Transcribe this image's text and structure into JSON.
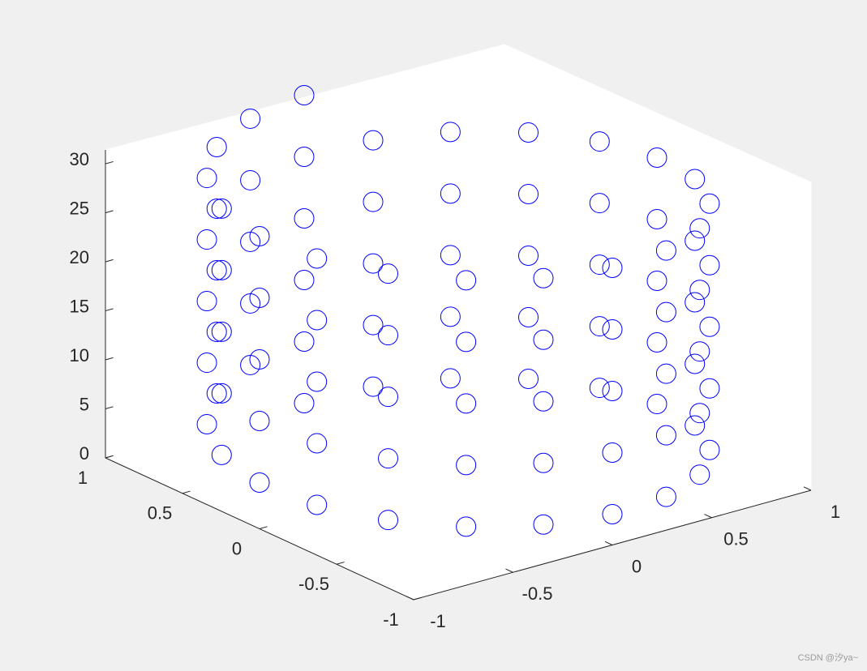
{
  "chart_data": {
    "type": "scatter3d",
    "marker": "circle",
    "color": "#0000ff",
    "x": [
      0,
      0.309,
      0.588,
      0.809,
      0.951,
      1,
      0.951,
      0.809,
      0.588,
      0.309,
      0,
      -0.309,
      -0.588,
      -0.809,
      -0.951,
      -1,
      -0.951,
      -0.809,
      -0.588,
      -0.309,
      0,
      0.309,
      0.588,
      0.809,
      0.951,
      1,
      0.951,
      0.809,
      0.588,
      0.309,
      0,
      -0.309,
      -0.588,
      -0.809,
      -0.951,
      -1,
      -0.951,
      -0.809,
      -0.588,
      -0.309,
      0,
      0.309,
      0.588,
      0.809,
      0.951,
      1,
      0.951,
      0.809,
      0.588,
      0.309,
      0,
      -0.309,
      -0.588,
      -0.809,
      -0.951,
      -1,
      -0.951,
      -0.809,
      -0.588,
      -0.309,
      0,
      0.309,
      0.588,
      0.809,
      0.951,
      1,
      0.951,
      0.809,
      0.588,
      0.309,
      0,
      -0.309,
      -0.588,
      -0.809,
      -0.951,
      -1,
      -0.951,
      -0.809,
      -0.588,
      -0.309,
      0,
      0.309,
      0.588,
      0.809,
      0.951,
      1,
      0.951,
      0.809,
      0.588,
      0.309,
      0,
      -0.309,
      -0.588,
      -0.809,
      -0.951,
      -1,
      -0.951,
      -0.809,
      -0.588,
      -0.309,
      0
    ],
    "y": [
      1,
      0.951,
      0.809,
      0.588,
      0.309,
      0,
      -0.309,
      -0.588,
      -0.809,
      -0.951,
      -1,
      -0.951,
      -0.809,
      -0.588,
      -0.309,
      0,
      0.309,
      0.588,
      0.809,
      0.951,
      1,
      0.951,
      0.809,
      0.588,
      0.309,
      0,
      -0.309,
      -0.588,
      -0.809,
      -0.951,
      -1,
      -0.951,
      -0.809,
      -0.588,
      -0.309,
      0,
      0.309,
      0.588,
      0.809,
      0.951,
      1,
      0.951,
      0.809,
      0.588,
      0.309,
      0,
      -0.309,
      -0.588,
      -0.809,
      -0.951,
      -1,
      -0.951,
      -0.809,
      -0.588,
      -0.309,
      0,
      0.309,
      0.588,
      0.809,
      0.951,
      1,
      0.951,
      0.809,
      0.588,
      0.309,
      0,
      -0.309,
      -0.588,
      -0.809,
      -0.951,
      -1,
      -0.951,
      -0.809,
      -0.588,
      -0.309,
      0,
      0.309,
      0.588,
      0.809,
      0.951,
      1,
      0.951,
      0.809,
      0.588,
      0.309,
      0,
      -0.309,
      -0.588,
      -0.809,
      -0.951,
      -1,
      -0.951,
      -0.809,
      -0.588,
      -0.309,
      0,
      0.309,
      0.588,
      0.809,
      0.951,
      1
    ],
    "z": [
      0,
      0.314,
      0.628,
      0.942,
      1.257,
      1.571,
      1.885,
      2.199,
      2.513,
      2.827,
      3.142,
      3.456,
      3.77,
      4.084,
      4.398,
      4.712,
      5.027,
      5.341,
      5.655,
      5.969,
      6.283,
      6.597,
      6.912,
      7.226,
      7.54,
      7.854,
      8.168,
      8.482,
      8.796,
      9.111,
      9.425,
      9.739,
      10.053,
      10.367,
      10.681,
      10.996,
      11.31,
      11.624,
      11.938,
      12.252,
      12.566,
      12.881,
      13.195,
      13.509,
      13.823,
      14.137,
      14.451,
      14.765,
      15.08,
      15.394,
      15.708,
      16.022,
      16.336,
      16.65,
      16.965,
      17.279,
      17.593,
      17.907,
      18.221,
      18.535,
      18.85,
      19.164,
      19.478,
      19.792,
      20.106,
      20.42,
      20.735,
      21.049,
      21.363,
      21.677,
      21.991,
      22.305,
      22.619,
      22.934,
      23.248,
      23.562,
      23.876,
      24.19,
      24.504,
      24.819,
      25.133,
      25.447,
      25.761,
      26.075,
      26.389,
      26.704,
      27.018,
      27.332,
      27.646,
      27.96,
      28.274,
      28.588,
      28.903,
      29.217,
      29.531,
      29.845,
      30.159,
      30.473,
      30.788,
      31.102,
      31.416
    ],
    "xlim": [
      -1,
      1
    ],
    "ylim": [
      -1,
      1
    ],
    "zlim": [
      0,
      31.416
    ],
    "xticks": [
      -1,
      -0.5,
      0,
      0.5,
      1
    ],
    "yticks": [
      -1,
      -0.5,
      0,
      0.5,
      1
    ],
    "zticks": [
      0,
      5,
      10,
      15,
      20,
      25,
      30
    ]
  },
  "watermark": "CSDN @汐ya~"
}
